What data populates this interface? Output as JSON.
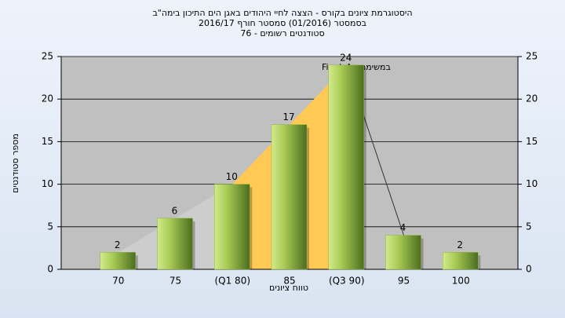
{
  "chart_data": {
    "type": "bar",
    "title": "היסטוגרמת ציונים בקורס - הצצה לחיי היהודים באגן הים התיכון בימה\"ב",
    "subtitle": "בסמסטר  (01/2016)  סמסטר חורף 2016/17",
    "subtitle2": "סטודנטים רשומים - 76",
    "annotation": "במשימה : Final_A",
    "x_label": "טווח ציונים",
    "y_label": "מספר סטודנטים",
    "categories": [
      "70",
      "75",
      "(Q1 80)",
      "85",
      "(Q3 90)",
      "95",
      "100"
    ],
    "values": [
      2,
      6,
      10,
      17,
      24,
      4,
      2
    ],
    "color": "#8db33a",
    "ylim": [
      0,
      25
    ],
    "yticks": [
      0,
      5,
      10,
      15,
      20,
      25
    ],
    "y2lim": [
      0,
      25
    ],
    "y2ticks": [
      0,
      5,
      10,
      15,
      20,
      25
    ],
    "grid": true
  }
}
